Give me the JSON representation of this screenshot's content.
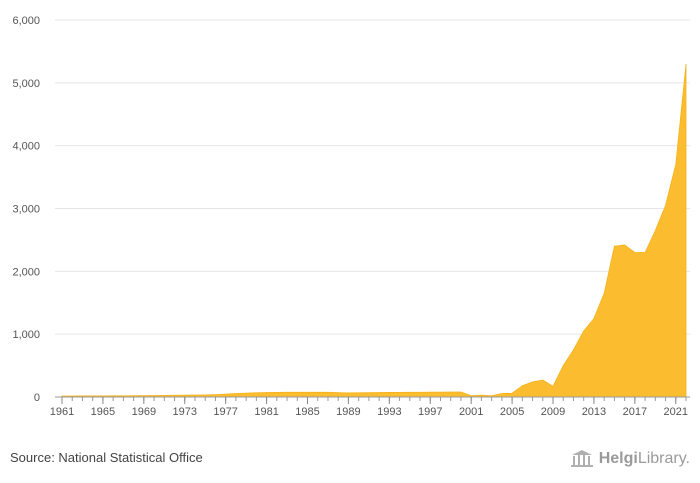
{
  "chart_data": {
    "type": "area",
    "title": "",
    "xlabel": "",
    "ylabel": "",
    "ylim": [
      0,
      6000
    ],
    "grid": true,
    "color": "#fbbd2f",
    "y_ticks": [
      0,
      1000,
      2000,
      3000,
      4000,
      5000,
      6000
    ],
    "y_tick_labels": [
      "0",
      "1,000",
      "2,000",
      "3,000",
      "4,000",
      "5,000",
      "6,000"
    ],
    "x_ticks": [
      1961,
      1965,
      1969,
      1973,
      1977,
      1981,
      1985,
      1989,
      1993,
      1997,
      2001,
      2005,
      2009,
      2013,
      2017,
      2021
    ],
    "x": [
      1961,
      1962,
      1963,
      1964,
      1965,
      1966,
      1967,
      1968,
      1969,
      1970,
      1971,
      1972,
      1973,
      1974,
      1975,
      1976,
      1977,
      1978,
      1979,
      1980,
      1981,
      1982,
      1983,
      1984,
      1985,
      1986,
      1987,
      1988,
      1989,
      1990,
      1991,
      1992,
      1993,
      1994,
      1995,
      1996,
      1997,
      1998,
      1999,
      2000,
      2001,
      2002,
      2003,
      2004,
      2005,
      2006,
      2007,
      2008,
      2009,
      2010,
      2011,
      2012,
      2013,
      2014,
      2015,
      2016,
      2017,
      2018,
      2019,
      2020,
      2021,
      2022
    ],
    "values": [
      15,
      16,
      17,
      18,
      18,
      19,
      20,
      21,
      22,
      23,
      25,
      28,
      30,
      32,
      33,
      38,
      45,
      55,
      62,
      68,
      72,
      74,
      75,
      75,
      75,
      75,
      76,
      70,
      65,
      68,
      70,
      72,
      73,
      74,
      75,
      76,
      77,
      78,
      79,
      80,
      20,
      30,
      20,
      55,
      60,
      180,
      240,
      270,
      170,
      500,
      750,
      1050,
      1250,
      1650,
      2400,
      2420,
      2300,
      2300,
      2650,
      3050,
      3700,
      5300
    ]
  },
  "footer": {
    "source": "Source: National Statistical Office",
    "logo_text_bold": "Helgi",
    "logo_text_light": "Library."
  }
}
